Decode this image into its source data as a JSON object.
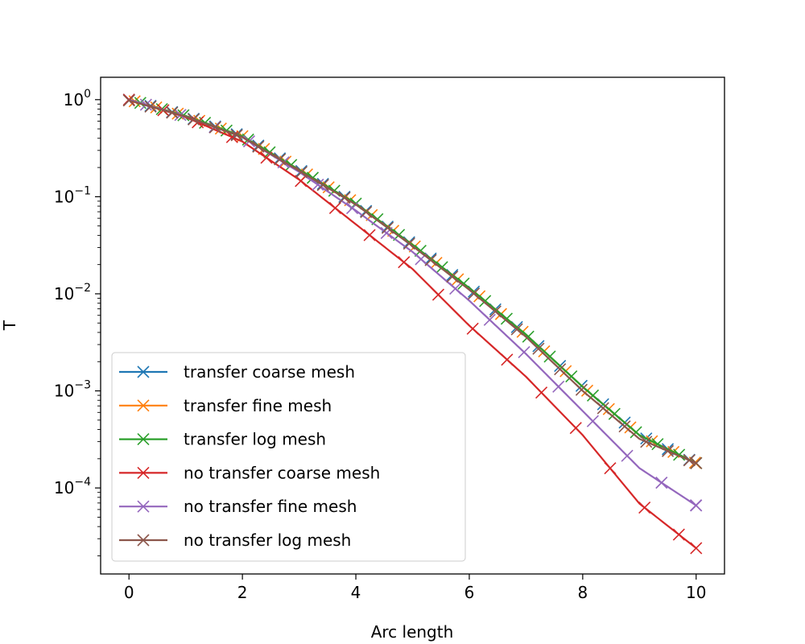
{
  "chart_data": {
    "type": "line",
    "title": "",
    "xlabel": "Arc length",
    "ylabel": "T",
    "xlim": [
      -0.5,
      10.5
    ],
    "ylim": [
      1.3e-05,
      1.7
    ],
    "yscale": "log",
    "grid": false,
    "legend_position": "lower-left",
    "x_ticks": [
      0,
      2,
      4,
      6,
      8,
      10
    ],
    "x_tick_labels": [
      "0",
      "2",
      "4",
      "6",
      "8",
      "10"
    ],
    "y_ticks": [
      {
        "value": 1,
        "base": "10",
        "exp": "0"
      },
      {
        "value": 0.1,
        "base": "10",
        "exp": "−1"
      },
      {
        "value": 0.01,
        "base": "10",
        "exp": "−2"
      },
      {
        "value": 0.001,
        "base": "10",
        "exp": "−3"
      },
      {
        "value": 0.0001,
        "base": "10",
        "exp": "−4"
      }
    ],
    "series": [
      {
        "name": "transfer coarse mesh",
        "color": "#1f77b4",
        "marker_start": 0.0,
        "marker_step": 0.38,
        "x": [
          0,
          1,
          2,
          3,
          4,
          5,
          6,
          7,
          8,
          9,
          10
        ],
        "y": [
          1.0,
          0.68,
          0.42,
          0.19,
          0.085,
          0.032,
          0.0115,
          0.0038,
          0.0011,
          0.00035,
          0.00018
        ]
      },
      {
        "name": "transfer fine mesh",
        "color": "#ff7f0e",
        "marker_start": 0.1,
        "marker_step": 0.38,
        "x": [
          0,
          1,
          2,
          3,
          4,
          5,
          6,
          7,
          8,
          9,
          10
        ],
        "y": [
          1.0,
          0.68,
          0.42,
          0.19,
          0.085,
          0.032,
          0.0115,
          0.0038,
          0.0011,
          0.00035,
          0.00018
        ]
      },
      {
        "name": "transfer log mesh",
        "color": "#2ca02c",
        "marker_start": 0.2,
        "marker_step": 0.38,
        "x": [
          0,
          1,
          2,
          3,
          4,
          5,
          6,
          7,
          8,
          9,
          10
        ],
        "y": [
          1.0,
          0.68,
          0.42,
          0.19,
          0.085,
          0.032,
          0.0115,
          0.0038,
          0.0011,
          0.00035,
          0.00018
        ]
      },
      {
        "name": "no transfer coarse mesh",
        "color": "#d62728",
        "marker_start": 0.0,
        "marker_step": 0.606,
        "x": [
          0,
          1,
          2,
          3,
          4,
          5,
          6,
          7,
          8,
          9,
          10
        ],
        "y": [
          1.0,
          0.66,
          0.37,
          0.15,
          0.052,
          0.018,
          0.0047,
          0.0014,
          0.00035,
          6.9e-05,
          2.4e-05
        ]
      },
      {
        "name": "no transfer fine mesh",
        "color": "#9467bd",
        "marker_start": 0.3,
        "marker_step": 0.606,
        "x": [
          0,
          1,
          2,
          3,
          4,
          5,
          6,
          7,
          8,
          9,
          10
        ],
        "y": [
          1.0,
          0.67,
          0.41,
          0.18,
          0.072,
          0.027,
          0.0085,
          0.0024,
          0.00062,
          0.00016,
          6.6e-05
        ]
      },
      {
        "name": "no transfer log mesh",
        "color": "#8c564b",
        "marker_start": 0.0,
        "marker_step": 0.38,
        "x": [
          0,
          1,
          2,
          3,
          4,
          5,
          6,
          7,
          8,
          9,
          10
        ],
        "y": [
          0.98,
          0.67,
          0.41,
          0.185,
          0.083,
          0.031,
          0.011,
          0.0036,
          0.001,
          0.00032,
          0.00018
        ]
      }
    ]
  }
}
